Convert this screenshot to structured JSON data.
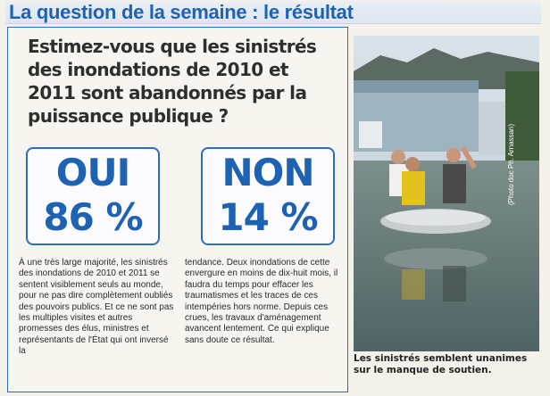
{
  "header": {
    "title": "La question de la semaine : le résultat"
  },
  "question": "Estimez-vous que les sinistrés des inondations de 2010 et 2011 sont abandonnés par la puissance publique ?",
  "votes": {
    "oui": {
      "label": "OUI",
      "percent": "86 %"
    },
    "non": {
      "label": "NON",
      "percent": "14 %"
    }
  },
  "body": {
    "left": "À une très large majorité, les sinistrés des inondations de 2010 et 2011 se sentent visiblement seuls au monde, pour ne pas dire complètement oubliés des pouvoirs publics. Et ce ne sont pas les multiples visites et autres promesses des élus, ministres et représentants de l'État qui ont inversé la",
    "right": "tendance. Deux inondations de cette envergure en moins de dix-huit mois, il faudra du temps pour effacer les traumatismes et les traces de ces intempéries hors norme. Depuis ces crues, les travaux d'aménagement avancent lentement. Ce qui explique sans doute ce résultat."
  },
  "photo": {
    "credit": "(Photo doc Ph. Arnassan)",
    "caption": "Les sinistrés semblent unanimes sur le manque de soutien."
  }
}
